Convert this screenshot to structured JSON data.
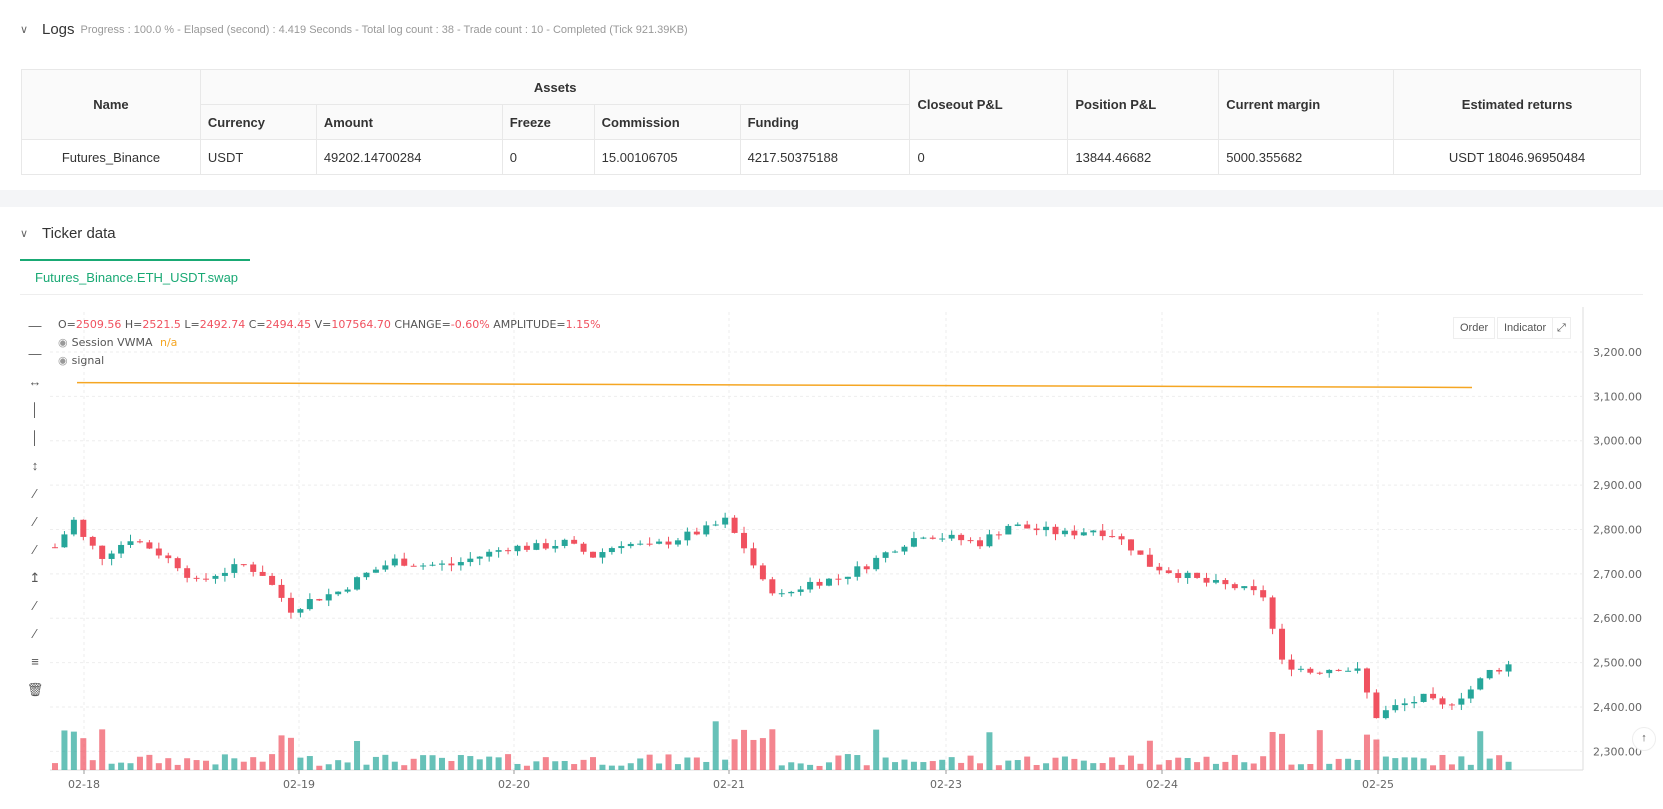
{
  "logs": {
    "title": "Logs",
    "meta": "Progress : 100.0 % - Elapsed (second) : 4.419  Seconds - Total log count : 38 - Trade count : 10 - Completed (Tick 921.39KB)"
  },
  "assets_table": {
    "headers": {
      "name": "Name",
      "assets": "Assets",
      "currency": "Currency",
      "amount": "Amount",
      "freeze": "Freeze",
      "commission": "Commission",
      "funding": "Funding",
      "closeout": "Closeout P&L",
      "position": "Position P&L",
      "margin": "Current margin",
      "returns": "Estimated returns"
    },
    "row": {
      "name": "Futures_Binance",
      "currency": "USDT",
      "amount": "49202.14700284",
      "freeze": "0",
      "commission": "15.00106705",
      "funding": "4217.50375188",
      "closeout": "0",
      "position": "13844.46682",
      "margin": "5000.355682",
      "returns": "USDT 18046.96950484"
    }
  },
  "ticker": {
    "title": "Ticker data",
    "tab": "Futures_Binance.ETH_USDT.swap",
    "buttons": {
      "order": "Order",
      "indicator": "Indicator"
    },
    "ohlc": {
      "o_label": "O=",
      "o": "2509.56",
      "h_label": "H=",
      "h": "2521.5",
      "l_label": "L=",
      "l": "2492.74",
      "c_label": "C=",
      "c": "2494.45",
      "v_label": "V=",
      "v": "107564.70",
      "change_label": "CHANGE=",
      "change": "-0.60%",
      "amp_label": "AMPLITUDE=",
      "amp": "1.15%"
    },
    "indicator1": {
      "name": "Session VWMA",
      "value": "n/a"
    },
    "indicator2": {
      "name": "signal"
    }
  },
  "colors": {
    "up": "#26a69a",
    "down": "#f0515f",
    "vwma": "#f5a623",
    "accent": "#19a974"
  },
  "chart_data": {
    "type": "candlestick",
    "y_ticks": [
      "3,200.00",
      "3,100.00",
      "3,000.00",
      "2,900.00",
      "2,800.00",
      "2,700.00",
      "2,600.00",
      "2,500.00",
      "2,400.00",
      "2,300.00"
    ],
    "x_ticks": [
      "02-18",
      "02-19",
      "02-20",
      "02-21",
      "02-23",
      "02-24",
      "02-25"
    ],
    "ylim": [
      2258,
      3290
    ],
    "series_vwma": {
      "start": 3131,
      "end": 3120
    },
    "close_points": [
      [
        0,
        2760
      ],
      [
        2,
        2820
      ],
      [
        3,
        2780
      ],
      [
        5,
        2740
      ],
      [
        8,
        2780
      ],
      [
        10,
        2760
      ],
      [
        13,
        2720
      ],
      [
        15,
        2680
      ],
      [
        17,
        2700
      ],
      [
        20,
        2720
      ],
      [
        22,
        2700
      ],
      [
        25,
        2620
      ],
      [
        27,
        2640
      ],
      [
        30,
        2660
      ],
      [
        33,
        2700
      ],
      [
        36,
        2730
      ],
      [
        39,
        2720
      ],
      [
        42,
        2720
      ],
      [
        45,
        2740
      ],
      [
        48,
        2760
      ],
      [
        51,
        2760
      ],
      [
        54,
        2770
      ],
      [
        57,
        2740
      ],
      [
        60,
        2770
      ],
      [
        63,
        2760
      ],
      [
        66,
        2780
      ],
      [
        69,
        2800
      ],
      [
        71,
        2820
      ],
      [
        73,
        2760
      ],
      [
        75,
        2680
      ],
      [
        77,
        2650
      ],
      [
        80,
        2680
      ],
      [
        83,
        2690
      ],
      [
        86,
        2720
      ],
      [
        89,
        2760
      ],
      [
        92,
        2790
      ],
      [
        95,
        2780
      ],
      [
        98,
        2770
      ],
      [
        101,
        2810
      ],
      [
        104,
        2800
      ],
      [
        107,
        2790
      ],
      [
        110,
        2800
      ],
      [
        112,
        2790
      ],
      [
        114,
        2760
      ],
      [
        116,
        2720
      ],
      [
        119,
        2700
      ],
      [
        122,
        2680
      ],
      [
        125,
        2670
      ],
      [
        128,
        2650
      ],
      [
        130,
        2500
      ],
      [
        133,
        2480
      ],
      [
        136,
        2490
      ],
      [
        138,
        2480
      ],
      [
        140,
        2380
      ],
      [
        142,
        2400
      ],
      [
        145,
        2420
      ],
      [
        147,
        2400
      ],
      [
        150,
        2440
      ],
      [
        152,
        2480
      ],
      [
        154,
        2495
      ]
    ]
  }
}
